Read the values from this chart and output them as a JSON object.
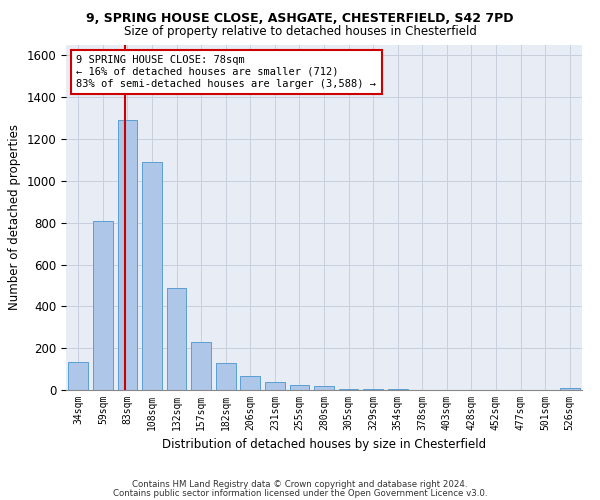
{
  "title_line1": "9, SPRING HOUSE CLOSE, ASHGATE, CHESTERFIELD, S42 7PD",
  "title_line2": "Size of property relative to detached houses in Chesterfield",
  "xlabel": "Distribution of detached houses by size in Chesterfield",
  "ylabel": "Number of detached properties",
  "categories": [
    "34sqm",
    "59sqm",
    "83sqm",
    "108sqm",
    "132sqm",
    "157sqm",
    "182sqm",
    "206sqm",
    "231sqm",
    "255sqm",
    "280sqm",
    "305sqm",
    "329sqm",
    "354sqm",
    "378sqm",
    "403sqm",
    "428sqm",
    "452sqm",
    "477sqm",
    "501sqm",
    "526sqm"
  ],
  "values": [
    135,
    810,
    1290,
    1090,
    490,
    230,
    130,
    65,
    38,
    25,
    18,
    5,
    5,
    5,
    2,
    2,
    0,
    0,
    0,
    0,
    10
  ],
  "bar_color": "#aec6e8",
  "bar_edge_color": "#5a9fd4",
  "grid_color": "#c8d0de",
  "background_color": "#e8edf5",
  "vline_color": "#cc0000",
  "annotation_text": "9 SPRING HOUSE CLOSE: 78sqm\n← 16% of detached houses are smaller (712)\n83% of semi-detached houses are larger (3,588) →",
  "annotation_box_color": "#ffffff",
  "annotation_box_edge": "#cc0000",
  "ylim": [
    0,
    1650
  ],
  "yticks": [
    0,
    200,
    400,
    600,
    800,
    1000,
    1200,
    1400,
    1600
  ],
  "footnote1": "Contains HM Land Registry data © Crown copyright and database right 2024.",
  "footnote2": "Contains public sector information licensed under the Open Government Licence v3.0."
}
